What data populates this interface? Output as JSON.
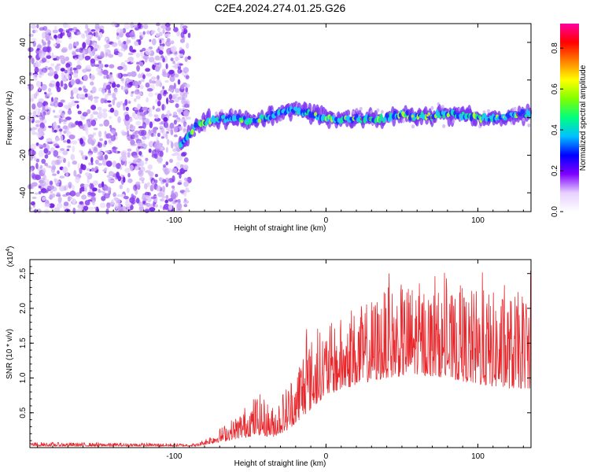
{
  "title": "C2E4.2024.274.01.25.G26",
  "chart_data": [
    {
      "type": "heatmap",
      "name": "spectrogram",
      "xlabel": "Height of straight line (km)",
      "ylabel": "Frequency (Hz)",
      "xlim": [
        -195,
        135
      ],
      "ylim": [
        -50,
        50
      ],
      "xticks": [
        -100,
        0,
        100
      ],
      "yticks": [
        -40,
        -20,
        0,
        20,
        40
      ],
      "noise_region_x": [
        -195,
        -90
      ],
      "signal_track": {
        "x": [
          -95,
          -90,
          -85,
          -80,
          -70,
          -60,
          -50,
          -40,
          -30,
          -20,
          -10,
          0,
          10,
          20,
          30,
          40,
          50,
          60,
          70,
          80,
          90,
          100,
          110,
          120,
          130
        ],
        "freq_hz": [
          -14,
          -9,
          -4,
          -2,
          -1,
          0,
          -2,
          0,
          3,
          4,
          2,
          0,
          -1,
          0,
          -1,
          0,
          2,
          0,
          1,
          2,
          1,
          0,
          0,
          1,
          2
        ]
      },
      "colorbar": {
        "label": "Normalized spectral amplitude",
        "ticks": [
          0.0,
          0.2,
          0.4,
          0.6,
          0.8
        ],
        "tick_labels": [
          "0.0",
          "0.2",
          "0.4",
          "0.6",
          "0.8"
        ],
        "range": [
          0,
          0.92
        ],
        "colors": [
          "#ffffff",
          "#e6d0ff",
          "#7f00ff",
          "#0000ff",
          "#00c0ff",
          "#00ff80",
          "#80ff00",
          "#ffff00",
          "#ff8000",
          "#ff0000",
          "#ff00a0"
        ]
      }
    },
    {
      "type": "line",
      "name": "snr",
      "xlabel": "Height of straight line (km)",
      "ylabel": "SNR (10 * v/v)",
      "yscale_label": "(x10",
      "yscale_exp": "4",
      "yscale_close": ")",
      "xlim": [
        -195,
        135
      ],
      "ylim": [
        0,
        2.7
      ],
      "xticks": [
        -100,
        0,
        100
      ],
      "yticks": [
        0.5,
        1.0,
        1.5,
        2.0,
        2.5
      ],
      "ytick_labels": [
        "0.5",
        "1.0",
        "1.5",
        "2.0",
        "2.5"
      ],
      "color": "#e8282d",
      "envelope": {
        "x": [
          -195,
          -150,
          -85,
          -75,
          -60,
          -45,
          -35,
          -25,
          -15,
          0,
          20,
          40,
          60,
          80,
          100,
          120,
          135
        ],
        "low": [
          0.02,
          0.02,
          0.02,
          0.06,
          0.12,
          0.18,
          0.15,
          0.25,
          0.45,
          0.75,
          0.9,
          1.0,
          1.05,
          1.0,
          0.9,
          0.85,
          0.85
        ],
        "high": [
          0.08,
          0.07,
          0.06,
          0.2,
          0.45,
          0.8,
          0.6,
          0.95,
          1.5,
          1.75,
          2.0,
          2.3,
          2.4,
          2.2,
          2.3,
          2.2,
          2.3
        ]
      }
    }
  ]
}
